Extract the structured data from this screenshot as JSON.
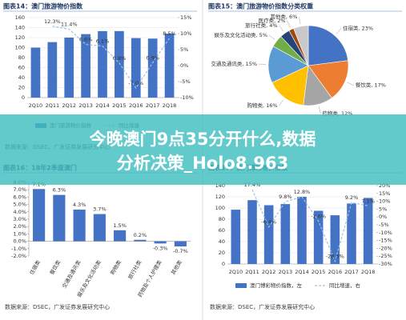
{
  "chart_data": [
    {
      "type": "combo",
      "title": "图表14：澳门旅游物价指数",
      "categories": [
        "2Q10",
        "2Q11",
        "2Q12",
        "2Q13",
        "2Q14",
        "2Q15",
        "2Q16",
        "2Q17",
        "2Q18"
      ],
      "series": [
        {
          "name": "澳门旅游物价指数",
          "color": "#4472c4",
          "values": [
            100,
            111,
            120,
            127,
            133,
            133,
            119,
            118,
            128
          ]
        },
        {
          "name": "同比增速",
          "color": "#9dc3e6",
          "axis": "y2",
          "values": [
            null,
            12.3,
            11.4,
            6.6,
            6.1,
            0.8,
            -7.0,
            0.9,
            8.5
          ],
          "value_labels": [
            null,
            "12.3%",
            "11.4%",
            "6.6%",
            "6.1%",
            "0.8%",
            "-7.0%",
            "0.9%",
            "8.5%"
          ]
        }
      ],
      "ylim": [
        0,
        160
      ],
      "yticks": [
        0,
        20,
        40,
        60,
        80,
        100,
        120,
        140,
        160
      ],
      "y2lim": [
        -10,
        15
      ],
      "y2ticks": [
        {
          "value": -10,
          "label": "-10%"
        },
        {
          "value": -5,
          "label": "-5%"
        },
        {
          "value": 0,
          "label": "0%"
        },
        {
          "value": 5,
          "label": "5%"
        },
        {
          "value": 10,
          "label": "10%"
        },
        {
          "value": 15,
          "label": "15%"
        }
      ],
      "grid": true,
      "source": "数据来源：DSEC，广发证券发展研究中心"
    },
    {
      "type": "pie",
      "title": "图表15：澳门旅游物价指数分类权重",
      "categories": [
        "住宿类, 23%",
        "餐饮类, 17%",
        "药物类, 12%",
        "购物类, 16%",
        "交通及通讯类, 15%",
        "娱乐及文化活动类, 5%",
        "旅行社类, 4%",
        "医疗类, 2%",
        "其他类, 6%"
      ],
      "values": [
        23,
        17,
        12,
        16,
        15,
        5,
        4,
        2,
        6
      ],
      "colors": [
        "#4472c4",
        "#ed7d31",
        "#a5a5a5",
        "#ffc000",
        "#5b9bd5",
        "#70ad47",
        "#264478",
        "#9e480e",
        "#c9c9c9"
      ]
    },
    {
      "type": "bar",
      "title": "图表16：18年2季度澳门",
      "categories": [
        "住宿类",
        "餐饮类",
        "交通及通讯类",
        "娱乐及文化活动类",
        "购物类",
        "旅行社类",
        "药物及个人护理类",
        "其他类"
      ],
      "values": [
        7.1,
        6.3,
        4.3,
        3.7,
        1.5,
        0.2,
        -0.3,
        -0.7
      ],
      "value_labels": [
        "7.1%",
        "6.3%",
        "4.3%",
        "3.7%",
        "1.5%",
        "0.2%",
        "-0.3%",
        "-0.7%"
      ],
      "color": "#4472c4",
      "ylim": [
        -2,
        8
      ],
      "yticks": [
        {
          "value": -2,
          "label": "-2.0%"
        },
        {
          "value": -1,
          "label": "-1.0%"
        },
        {
          "value": 0,
          "label": "0.0%"
        },
        {
          "value": 1,
          "label": "1.0%"
        },
        {
          "value": 2,
          "label": "2.0%"
        },
        {
          "value": 3,
          "label": "3.0%"
        },
        {
          "value": 4,
          "label": "4.0%"
        },
        {
          "value": 5,
          "label": "5.0%"
        },
        {
          "value": 6,
          "label": "6.0%"
        },
        {
          "value": 7,
          "label": "7.0%"
        },
        {
          "value": 8,
          "label": "8.0%"
        }
      ],
      "grid": false,
      "source": "数据来源：DSEC，广发证券发展研究中心"
    },
    {
      "type": "combo",
      "title": "图表17：澳门博彩物价指数",
      "categories": [
        "2Q10",
        "2Q11",
        "2Q12",
        "2Q13",
        "2Q14",
        "2Q15",
        "2Q16",
        "2Q17",
        "2Q18"
      ],
      "series": [
        {
          "name": "澳门博彩物价指数，左",
          "color": "#4472c4",
          "values": [
            97,
            114,
            105,
            107,
            120,
            95,
            87,
            108,
            118
          ]
        },
        {
          "name": "同比增速，右",
          "color": "#9dc3e6",
          "axis": "y2",
          "values": [
            null,
            17.4,
            -6.4,
            9.8,
            12.8,
            -2.6,
            -28.3,
            9.2,
            7.1
          ],
          "value_labels": [
            null,
            "17.4%",
            "-6.4%",
            "9.8%",
            "12.8%",
            "-2.6%",
            "-28.3%",
            "9.2%",
            "7.1%"
          ]
        }
      ],
      "ylim": [
        0,
        140
      ],
      "yticks": [
        0,
        20,
        40,
        60,
        80,
        100,
        120,
        140
      ],
      "y2lim": [
        -30,
        20
      ],
      "y2ticks": [
        {
          "value": -30,
          "label": "-30%"
        },
        {
          "value": -25,
          "label": "-25%"
        },
        {
          "value": -20,
          "label": "-20%"
        },
        {
          "value": -15,
          "label": "-15%"
        },
        {
          "value": -10,
          "label": "-10%"
        },
        {
          "value": -5,
          "label": "-5%"
        },
        {
          "value": 0,
          "label": "0%"
        },
        {
          "value": 5,
          "label": "5%"
        },
        {
          "value": 10,
          "label": "10%"
        },
        {
          "value": 15,
          "label": "15%"
        },
        {
          "value": 20,
          "label": "20%"
        }
      ],
      "grid": true,
      "source": "数据来源：DSEC，广发证券发展研究中心"
    }
  ],
  "banner": {
    "line1": "今晚澳门9点35分开什么,数据",
    "line2": "分析决策_Holo8.963"
  }
}
